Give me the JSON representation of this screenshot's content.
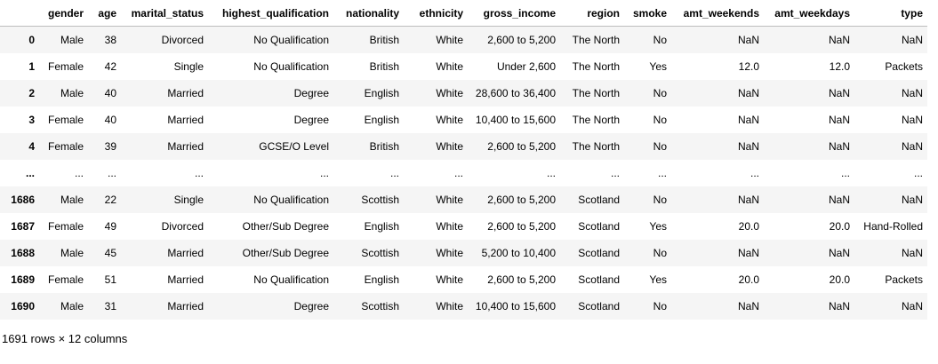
{
  "columns": [
    "",
    "gender",
    "age",
    "marital_status",
    "highest_qualification",
    "nationality",
    "ethnicity",
    "gross_income",
    "region",
    "smoke",
    "amt_weekends",
    "amt_weekdays",
    "type"
  ],
  "rows": [
    {
      "index": "0",
      "cells": [
        "Male",
        "38",
        "Divorced",
        "No Qualification",
        "British",
        "White",
        "2,600 to 5,200",
        "The North",
        "No",
        "NaN",
        "NaN",
        "NaN"
      ]
    },
    {
      "index": "1",
      "cells": [
        "Female",
        "42",
        "Single",
        "No Qualification",
        "British",
        "White",
        "Under 2,600",
        "The North",
        "Yes",
        "12.0",
        "12.0",
        "Packets"
      ]
    },
    {
      "index": "2",
      "cells": [
        "Male",
        "40",
        "Married",
        "Degree",
        "English",
        "White",
        "28,600 to 36,400",
        "The North",
        "No",
        "NaN",
        "NaN",
        "NaN"
      ]
    },
    {
      "index": "3",
      "cells": [
        "Female",
        "40",
        "Married",
        "Degree",
        "English",
        "White",
        "10,400 to 15,600",
        "The North",
        "No",
        "NaN",
        "NaN",
        "NaN"
      ]
    },
    {
      "index": "4",
      "cells": [
        "Female",
        "39",
        "Married",
        "GCSE/O Level",
        "British",
        "White",
        "2,600 to 5,200",
        "The North",
        "No",
        "NaN",
        "NaN",
        "NaN"
      ]
    },
    {
      "index": "...",
      "cells": [
        "...",
        "...",
        "...",
        "...",
        "...",
        "...",
        "...",
        "...",
        "...",
        "...",
        "...",
        "..."
      ]
    },
    {
      "index": "1686",
      "cells": [
        "Male",
        "22",
        "Single",
        "No Qualification",
        "Scottish",
        "White",
        "2,600 to 5,200",
        "Scotland",
        "No",
        "NaN",
        "NaN",
        "NaN"
      ]
    },
    {
      "index": "1687",
      "cells": [
        "Female",
        "49",
        "Divorced",
        "Other/Sub Degree",
        "English",
        "White",
        "2,600 to 5,200",
        "Scotland",
        "Yes",
        "20.0",
        "20.0",
        "Hand-Rolled"
      ]
    },
    {
      "index": "1688",
      "cells": [
        "Male",
        "45",
        "Married",
        "Other/Sub Degree",
        "Scottish",
        "White",
        "5,200 to 10,400",
        "Scotland",
        "No",
        "NaN",
        "NaN",
        "NaN"
      ]
    },
    {
      "index": "1689",
      "cells": [
        "Female",
        "51",
        "Married",
        "No Qualification",
        "English",
        "White",
        "2,600 to 5,200",
        "Scotland",
        "Yes",
        "20.0",
        "20.0",
        "Packets"
      ]
    },
    {
      "index": "1690",
      "cells": [
        "Male",
        "31",
        "Married",
        "Degree",
        "Scottish",
        "White",
        "10,400 to 15,600",
        "Scotland",
        "No",
        "NaN",
        "NaN",
        "NaN"
      ]
    }
  ],
  "shape_text": "1691 rows × 12 columns"
}
